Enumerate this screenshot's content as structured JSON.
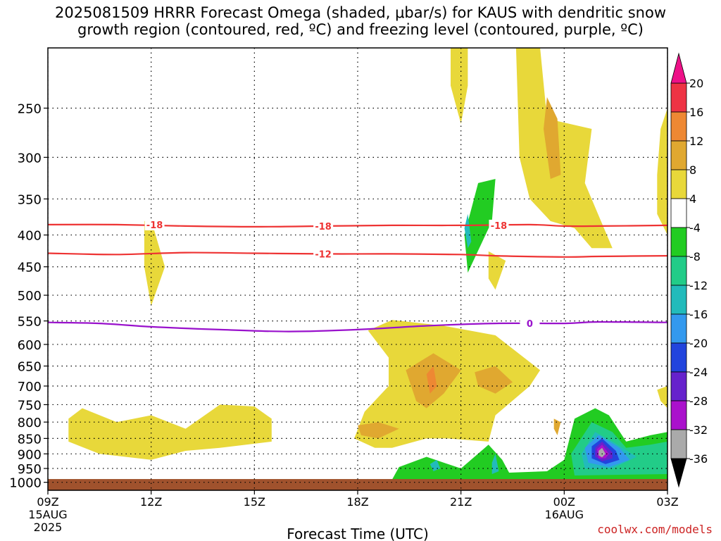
{
  "title": {
    "line1": "2025081509 HRRR Forecast Omega (shaded, μbar/s) for KAUS with dendritic snow",
    "line2": "growth region (contoured, red, ºC) and freezing level (contoured, purple, ºC)"
  },
  "watermark": "coolwx.com/models",
  "chart_data": {
    "type": "heatmap",
    "title": "2025081509 HRRR Forecast Omega (shaded, μbar/s) for KAUS with dendritic snow growth region (contoured, red, ºC) and freezing level (contoured, purple, ºC)",
    "xlabel": "Forecast Time (UTC)",
    "ylabel": "",
    "x_ticks": [
      {
        "hour": 0,
        "label": "09Z",
        "sub1": "15AUG",
        "sub2": "2025"
      },
      {
        "hour": 3,
        "label": "12Z",
        "sub1": "",
        "sub2": ""
      },
      {
        "hour": 6,
        "label": "15Z",
        "sub1": "",
        "sub2": ""
      },
      {
        "hour": 9,
        "label": "18Z",
        "sub1": "",
        "sub2": ""
      },
      {
        "hour": 12,
        "label": "21Z",
        "sub1": "",
        "sub2": ""
      },
      {
        "hour": 15,
        "label": "00Z",
        "sub1": "16AUG",
        "sub2": ""
      },
      {
        "hour": 18,
        "label": "03Z",
        "sub1": "",
        "sub2": ""
      }
    ],
    "xlim": [
      0,
      18
    ],
    "y_pressure_ticks": [
      250,
      300,
      350,
      400,
      450,
      500,
      550,
      600,
      650,
      700,
      750,
      800,
      850,
      900,
      950,
      1000
    ],
    "ylim_hPa": [
      200,
      1030
    ],
    "y_scale": "log",
    "grid": true,
    "colorbar": {
      "ticks": [
        20,
        16,
        12,
        8,
        4,
        -4,
        -8,
        -12,
        -16,
        -20,
        -24,
        -28,
        -32,
        -36
      ],
      "bins": [
        {
          "lo": 16,
          "hi": 20,
          "color": "#ee3344"
        },
        {
          "lo": 12,
          "hi": 16,
          "color": "#ee8833"
        },
        {
          "lo": 8,
          "hi": 12,
          "color": "#e0a830"
        },
        {
          "lo": 4,
          "hi": 8,
          "color": "#e8d83a"
        },
        {
          "lo": -4,
          "hi": 4,
          "color": "#ffffff"
        },
        {
          "lo": -8,
          "hi": -4,
          "color": "#22cc22"
        },
        {
          "lo": -12,
          "hi": -8,
          "color": "#22cc88"
        },
        {
          "lo": -16,
          "hi": -12,
          "color": "#22bbbb"
        },
        {
          "lo": -20,
          "hi": -16,
          "color": "#3399ee"
        },
        {
          "lo": -24,
          "hi": -20,
          "color": "#2244dd"
        },
        {
          "lo": -28,
          "hi": -24,
          "color": "#6622cc"
        },
        {
          "lo": -32,
          "hi": -28,
          "color": "#aa11cc"
        },
        {
          "lo": -36,
          "hi": -32,
          "color": "#aaaaaa"
        }
      ],
      "top_arrow_color": "#ee1188",
      "bottom_arrow_color": "#000000"
    },
    "contours": [
      {
        "kind": "dendritic",
        "value": -18,
        "label": "-18",
        "color": "#ee3333",
        "points": [
          [
            0,
            385
          ],
          [
            2,
            385
          ],
          [
            4,
            387
          ],
          [
            6,
            388
          ],
          [
            8,
            387
          ],
          [
            10,
            386
          ],
          [
            12,
            386
          ],
          [
            14,
            385
          ],
          [
            15,
            387
          ],
          [
            16,
            387
          ],
          [
            18,
            386
          ]
        ]
      },
      {
        "kind": "dendritic",
        "value": -12,
        "label": "-12",
        "color": "#ee3333",
        "points": [
          [
            0,
            428
          ],
          [
            2,
            430
          ],
          [
            4,
            427
          ],
          [
            6,
            428
          ],
          [
            8,
            429
          ],
          [
            10,
            429
          ],
          [
            12,
            430
          ],
          [
            13,
            432
          ],
          [
            15,
            434
          ],
          [
            16,
            433
          ],
          [
            18,
            432
          ]
        ]
      },
      {
        "kind": "freezing",
        "value": 0,
        "label": "0",
        "color": "#9911cc",
        "points": [
          [
            0,
            553
          ],
          [
            1.5,
            555
          ],
          [
            3,
            562
          ],
          [
            5,
            568
          ],
          [
            7,
            572
          ],
          [
            9,
            568
          ],
          [
            11,
            560
          ],
          [
            13,
            555
          ],
          [
            15,
            555
          ],
          [
            16,
            552
          ],
          [
            18,
            553
          ]
        ]
      }
    ],
    "contour_labels": [
      {
        "text": "-18",
        "hour": 3.1,
        "hPa": 385
      },
      {
        "text": "-18",
        "hour": 8.0,
        "hPa": 387
      },
      {
        "text": "-18",
        "hour": 13.1,
        "hPa": 386
      },
      {
        "text": "-12",
        "hour": 8.0,
        "hPa": 429
      },
      {
        "text": "0",
        "hour": 14.0,
        "hPa": 555
      }
    ],
    "shaded_regions": [
      {
        "omega": 4,
        "color": "#e8d83a",
        "points": [
          [
            11.7,
            200
          ],
          [
            12.2,
            200
          ],
          [
            12.2,
            230
          ],
          [
            12,
            265
          ],
          [
            11.7,
            230
          ]
        ]
      },
      {
        "omega": 4,
        "color": "#e8d83a",
        "points": [
          [
            13.6,
            200
          ],
          [
            14.3,
            200
          ],
          [
            14.5,
            260
          ],
          [
            15.8,
            270
          ],
          [
            15.6,
            330
          ],
          [
            16.4,
            420
          ],
          [
            15.8,
            420
          ],
          [
            15.3,
            390
          ],
          [
            14.6,
            380
          ],
          [
            14,
            350
          ],
          [
            13.7,
            300
          ]
        ]
      },
      {
        "omega": 4,
        "color": "#e8d83a",
        "points": [
          [
            17.8,
            270
          ],
          [
            18,
            250
          ],
          [
            18,
            400
          ],
          [
            17.7,
            370
          ],
          [
            17.7,
            320
          ]
        ]
      },
      {
        "omega": 4,
        "color": "#e8d83a",
        "points": [
          [
            2.8,
            380
          ],
          [
            3,
            378
          ],
          [
            3.4,
            450
          ],
          [
            3,
            520
          ],
          [
            2.8,
            450
          ]
        ]
      },
      {
        "omega": 4,
        "color": "#e8d83a",
        "points": [
          [
            12.8,
            425
          ],
          [
            13.3,
            440
          ],
          [
            13,
            490
          ],
          [
            12.8,
            470
          ]
        ]
      },
      {
        "omega": 4,
        "color": "#e8d83a",
        "points": [
          [
            9.3,
            570
          ],
          [
            10,
            548
          ],
          [
            11.5,
            560
          ],
          [
            13,
            580
          ],
          [
            14.3,
            660
          ],
          [
            14,
            700
          ],
          [
            13,
            780
          ],
          [
            12.8,
            860
          ],
          [
            11.6,
            850
          ],
          [
            11,
            850
          ],
          [
            10,
            880
          ],
          [
            9.5,
            880
          ],
          [
            8.9,
            850
          ],
          [
            9.2,
            770
          ],
          [
            9.9,
            700
          ],
          [
            9.9,
            630
          ]
        ]
      },
      {
        "omega": 4,
        "color": "#e8d83a",
        "points": [
          [
            0.6,
            790
          ],
          [
            1,
            760
          ],
          [
            2,
            800
          ],
          [
            3,
            780
          ],
          [
            4,
            820
          ],
          [
            5,
            750
          ],
          [
            6,
            755
          ],
          [
            6.5,
            790
          ],
          [
            6.5,
            860
          ],
          [
            5,
            880
          ],
          [
            4,
            890
          ],
          [
            3,
            920
          ],
          [
            1.5,
            900
          ],
          [
            0.6,
            860
          ]
        ]
      },
      {
        "omega": 4,
        "color": "#e8d83a",
        "points": [
          [
            17.7,
            710
          ],
          [
            18,
            700
          ],
          [
            18,
            760
          ],
          [
            17.8,
            740
          ]
        ]
      },
      {
        "omega": 8,
        "color": "#e0a830",
        "points": [
          [
            14.5,
            240
          ],
          [
            14.8,
            260
          ],
          [
            14.9,
            320
          ],
          [
            14.6,
            325
          ],
          [
            14.4,
            270
          ]
        ]
      },
      {
        "omega": 8,
        "color": "#e0a830",
        "points": [
          [
            10.4,
            660
          ],
          [
            11.2,
            620
          ],
          [
            12,
            660
          ],
          [
            11.5,
            720
          ],
          [
            11,
            760
          ],
          [
            10.7,
            740
          ]
        ]
      },
      {
        "omega": 8,
        "color": "#e0a830",
        "points": [
          [
            12.4,
            665
          ],
          [
            13,
            650
          ],
          [
            13.5,
            690
          ],
          [
            13,
            720
          ],
          [
            12.5,
            700
          ]
        ]
      },
      {
        "omega": 8,
        "color": "#e0a830",
        "points": [
          [
            9,
            810
          ],
          [
            9.6,
            800
          ],
          [
            10.2,
            820
          ],
          [
            9.6,
            850
          ],
          [
            9.1,
            840
          ]
        ]
      },
      {
        "omega": 8,
        "color": "#e0a830",
        "points": [
          [
            14.7,
            790
          ],
          [
            14.9,
            800
          ],
          [
            14.8,
            840
          ],
          [
            14.7,
            820
          ]
        ]
      },
      {
        "omega": 12,
        "color": "#ee8833",
        "points": [
          [
            11,
            670
          ],
          [
            11.2,
            650
          ],
          [
            11.3,
            700
          ],
          [
            11.1,
            720
          ]
        ]
      },
      {
        "omega": -4,
        "color": "#22cc22",
        "points": [
          [
            12.1,
            400
          ],
          [
            12.5,
            330
          ],
          [
            13,
            325
          ],
          [
            12.9,
            380
          ],
          [
            12.2,
            460
          ]
        ]
      },
      {
        "omega": -4,
        "color": "#22cc22",
        "points": [
          [
            10.2,
            945
          ],
          [
            11,
            910
          ],
          [
            12,
            950
          ],
          [
            12.8,
            870
          ],
          [
            13.2,
            920
          ],
          [
            13.4,
            965
          ],
          [
            14.5,
            960
          ],
          [
            15,
            920
          ],
          [
            15.3,
            790
          ],
          [
            15.9,
            760
          ],
          [
            16.3,
            780
          ],
          [
            16.8,
            860
          ],
          [
            17.5,
            840
          ],
          [
            18,
            830
          ],
          [
            18,
            990
          ],
          [
            10,
            990
          ]
        ]
      },
      {
        "omega": -8,
        "color": "#22cc88",
        "points": [
          [
            15.2,
            900
          ],
          [
            15.8,
            800
          ],
          [
            16.4,
            830
          ],
          [
            16.8,
            880
          ],
          [
            17.5,
            870
          ],
          [
            18,
            860
          ],
          [
            18,
            970
          ],
          [
            15.3,
            975
          ]
        ]
      },
      {
        "omega": -12,
        "color": "#22bbbb",
        "points": [
          [
            15.5,
            900
          ],
          [
            15.9,
            830
          ],
          [
            16.4,
            860
          ],
          [
            17.1,
            910
          ],
          [
            16.4,
            950
          ],
          [
            15.6,
            950
          ]
        ]
      },
      {
        "omega": -12,
        "color": "#22bbbb",
        "points": [
          [
            12.1,
            390
          ],
          [
            12.2,
            370
          ],
          [
            12.3,
            410
          ],
          [
            12.2,
            420
          ]
        ]
      },
      {
        "omega": -12,
        "color": "#22bbbb",
        "points": [
          [
            11.1,
            935
          ],
          [
            11.3,
            920
          ],
          [
            11.4,
            950
          ],
          [
            11.2,
            960
          ]
        ]
      },
      {
        "omega": -12,
        "color": "#22bbbb",
        "points": [
          [
            12.9,
            930
          ],
          [
            13,
            900
          ],
          [
            13.1,
            960
          ],
          [
            12.9,
            970
          ]
        ]
      },
      {
        "omega": -16,
        "color": "#3399ee",
        "points": [
          [
            15.6,
            880
          ],
          [
            16,
            840
          ],
          [
            16.6,
            880
          ],
          [
            16.9,
            920
          ],
          [
            16.3,
            945
          ],
          [
            15.7,
            930
          ]
        ]
      },
      {
        "omega": -20,
        "color": "#2244dd",
        "points": [
          [
            15.8,
            875
          ],
          [
            16.1,
            850
          ],
          [
            16.5,
            890
          ],
          [
            16.6,
            920
          ],
          [
            16.2,
            935
          ],
          [
            15.8,
            915
          ]
        ]
      },
      {
        "omega": -24,
        "color": "#6622cc",
        "points": [
          [
            15.9,
            880
          ],
          [
            16.1,
            860
          ],
          [
            16.4,
            895
          ],
          [
            16.4,
            915
          ],
          [
            16.1,
            925
          ],
          [
            15.9,
            910
          ]
        ]
      },
      {
        "omega": -28,
        "color": "#aa11cc",
        "points": [
          [
            15.95,
            885
          ],
          [
            16.1,
            870
          ],
          [
            16.3,
            900
          ],
          [
            16.2,
            915
          ],
          [
            16,
            915
          ]
        ]
      },
      {
        "omega": -32,
        "color": "#aaaaaa",
        "points": [
          [
            16,
            890
          ],
          [
            16.1,
            880
          ],
          [
            16.2,
            900
          ],
          [
            16.1,
            912
          ],
          [
            16,
            905
          ]
        ]
      }
    ],
    "terrain": {
      "color": "#a0522d",
      "top_hPa": 988
    }
  }
}
